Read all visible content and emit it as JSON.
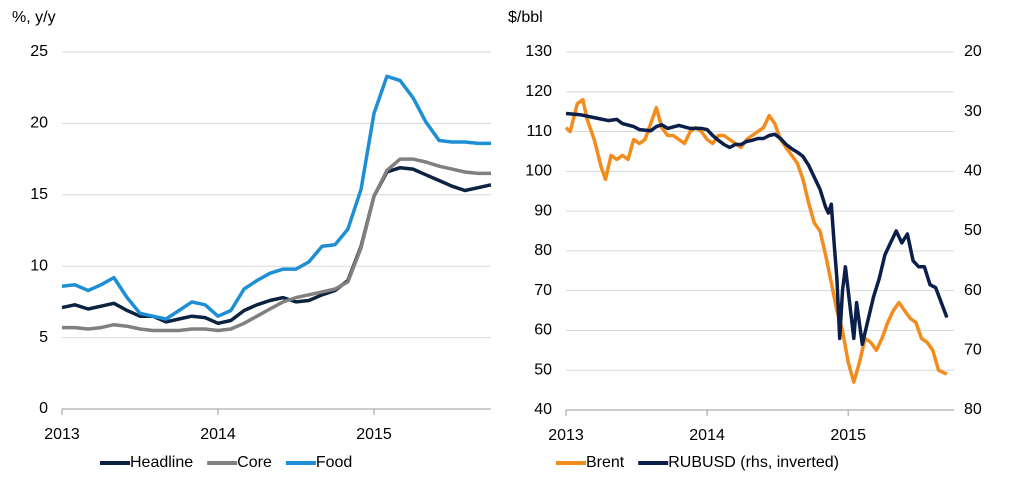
{
  "chart_data": [
    {
      "type": "line",
      "y_label": "%, y/y",
      "x": [
        2013.0,
        2013.083,
        2013.167,
        2013.25,
        2013.333,
        2013.417,
        2013.5,
        2013.583,
        2013.667,
        2013.75,
        2013.833,
        2013.917,
        2014.0,
        2014.083,
        2014.167,
        2014.25,
        2014.333,
        2014.417,
        2014.5,
        2014.583,
        2014.667,
        2014.75,
        2014.833,
        2014.917,
        2015.0,
        2015.083,
        2015.167,
        2015.25,
        2015.333,
        2015.417,
        2015.5,
        2015.583,
        2015.667,
        2015.75
      ],
      "series": [
        {
          "name": "Headline",
          "color": "#0c2340",
          "values": [
            7.1,
            7.3,
            7.0,
            7.2,
            7.4,
            6.9,
            6.5,
            6.5,
            6.1,
            6.3,
            6.5,
            6.4,
            6.0,
            6.2,
            6.9,
            7.3,
            7.6,
            7.8,
            7.5,
            7.6,
            8.0,
            8.3,
            9.0,
            11.4,
            14.9,
            16.6,
            16.9,
            16.8,
            16.4,
            16.0,
            15.6,
            15.3,
            15.5,
            15.7
          ]
        },
        {
          "name": "Core",
          "color": "#808080",
          "values": [
            5.7,
            5.7,
            5.6,
            5.7,
            5.9,
            5.8,
            5.6,
            5.5,
            5.5,
            5.5,
            5.6,
            5.6,
            5.5,
            5.6,
            6.0,
            6.5,
            7.0,
            7.5,
            7.8,
            8.0,
            8.2,
            8.4,
            8.9,
            11.3,
            14.9,
            16.7,
            17.5,
            17.5,
            17.3,
            17.0,
            16.8,
            16.6,
            16.5,
            16.5
          ]
        },
        {
          "name": "Food",
          "color": "#1e8fd5",
          "values": [
            8.6,
            8.7,
            8.3,
            8.7,
            9.2,
            7.8,
            6.7,
            6.5,
            6.3,
            6.9,
            7.5,
            7.3,
            6.5,
            6.9,
            8.4,
            9.0,
            9.5,
            9.8,
            9.8,
            10.3,
            11.4,
            11.5,
            12.6,
            15.4,
            20.7,
            23.3,
            23.0,
            21.8,
            20.1,
            18.8,
            18.7,
            18.7,
            18.6,
            18.6
          ]
        }
      ],
      "xlim": [
        2013,
        2015.75
      ],
      "xticks": [
        2013,
        2014,
        2015
      ],
      "ylim": [
        0,
        25
      ],
      "yticks": [
        0,
        5,
        10,
        15,
        20,
        25
      ],
      "grid": true
    },
    {
      "type": "line",
      "y_label": "$/bbl",
      "series": [
        {
          "name": "Brent",
          "color": "#f28c1c",
          "x": [
            2013.0,
            2013.03,
            2013.08,
            2013.12,
            2013.15,
            2013.2,
            2013.25,
            2013.28,
            2013.32,
            2013.36,
            2013.4,
            2013.44,
            2013.48,
            2013.52,
            2013.56,
            2013.6,
            2013.64,
            2013.68,
            2013.72,
            2013.76,
            2013.8,
            2013.84,
            2013.88,
            2013.92,
            2013.96,
            2014.0,
            2014.04,
            2014.08,
            2014.12,
            2014.16,
            2014.2,
            2014.24,
            2014.28,
            2014.32,
            2014.36,
            2014.4,
            2014.44,
            2014.48,
            2014.52,
            2014.56,
            2014.6,
            2014.64,
            2014.68,
            2014.72,
            2014.76,
            2014.8,
            2014.84,
            2014.88,
            2014.92,
            2014.96,
            2015.0,
            2015.04,
            2015.08,
            2015.12,
            2015.16,
            2015.2,
            2015.24,
            2015.28,
            2015.32,
            2015.36,
            2015.4,
            2015.44,
            2015.48,
            2015.52,
            2015.56,
            2015.6,
            2015.64,
            2015.7
          ],
          "values": [
            111,
            110,
            117,
            118,
            113,
            108,
            101,
            98,
            104,
            103,
            104,
            103,
            108,
            107,
            108,
            112,
            116,
            111,
            109,
            109,
            108,
            107,
            110,
            111,
            110,
            108,
            107,
            109,
            109,
            108,
            107,
            106,
            108,
            109,
            110,
            111,
            114,
            112,
            108,
            106,
            104,
            102,
            98,
            92,
            87,
            85,
            79,
            72,
            65,
            60,
            52,
            47,
            52,
            58,
            57,
            55,
            58,
            62,
            65,
            67,
            65,
            63,
            62,
            58,
            57,
            55,
            50,
            49
          ]
        },
        {
          "name": "RUBUSD (rhs, inverted)",
          "color": "#0c1f4a",
          "axis": "y2",
          "x": [
            2013.0,
            2013.1,
            2013.2,
            2013.3,
            2013.36,
            2013.4,
            2013.48,
            2013.52,
            2013.6,
            2013.64,
            2013.68,
            2013.72,
            2013.8,
            2013.88,
            2013.96,
            2014.0,
            2014.04,
            2014.08,
            2014.12,
            2014.16,
            2014.2,
            2014.24,
            2014.28,
            2014.32,
            2014.36,
            2014.4,
            2014.44,
            2014.48,
            2014.52,
            2014.56,
            2014.6,
            2014.64,
            2014.68,
            2014.72,
            2014.76,
            2014.8,
            2014.84,
            2014.86,
            2014.88,
            2014.9,
            2014.92,
            2014.94,
            2014.96,
            2014.98,
            2015.0,
            2015.04,
            2015.06,
            2015.1,
            2015.14,
            2015.18,
            2015.22,
            2015.26,
            2015.3,
            2015.34,
            2015.38,
            2015.42,
            2015.46,
            2015.5,
            2015.54,
            2015.58,
            2015.62,
            2015.66,
            2015.7
          ],
          "values": [
            30.3,
            30.5,
            31.0,
            31.5,
            31.3,
            32.0,
            32.5,
            33.0,
            33.2,
            32.5,
            32.2,
            32.8,
            32.3,
            32.8,
            32.8,
            33.0,
            34.0,
            34.8,
            35.5,
            36.0,
            35.5,
            35.5,
            35.0,
            34.8,
            34.5,
            34.5,
            34.0,
            33.8,
            34.5,
            35.5,
            36.2,
            36.8,
            37.5,
            39.0,
            41.0,
            43.0,
            46.0,
            47.0,
            45.5,
            52.0,
            58.0,
            68.0,
            60.0,
            56.0,
            60.0,
            68.0,
            62.0,
            69.0,
            65.0,
            61.0,
            58.0,
            54.0,
            52.0,
            50.0,
            52.0,
            50.5,
            55.0,
            56.0,
            56.0,
            59.0,
            59.5,
            62.0,
            64.5
          ]
        }
      ],
      "xlim": [
        2013,
        2015.75
      ],
      "xticks": [
        2013,
        2014,
        2015
      ],
      "ylim": [
        40,
        130
      ],
      "yticks": [
        40,
        50,
        60,
        70,
        80,
        90,
        100,
        110,
        120,
        130
      ],
      "y2lim": [
        20,
        80
      ],
      "y2ticks": [
        20,
        30,
        40,
        50,
        60,
        70,
        80
      ],
      "y2_inverted": true,
      "grid": true
    }
  ]
}
